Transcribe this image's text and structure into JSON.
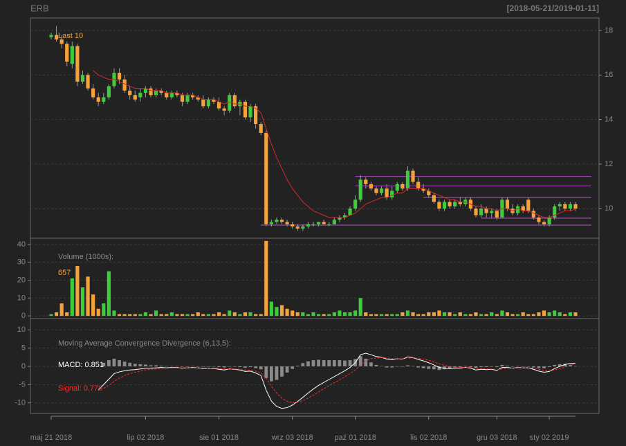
{
  "title": "ERB",
  "date_range": "[2018-05-21/2019-01-11]",
  "chart_data": [
    {
      "type": "candlestick",
      "label": "Last 10",
      "open": [
        17.7,
        17.8,
        17.6,
        17.4,
        16.5,
        17.3,
        15.7,
        16.0,
        15.4,
        15.0,
        14.8,
        15.0,
        15.5,
        16.1,
        15.8,
        15.3,
        15.1,
        15.0,
        15.2,
        15.4,
        15.1,
        15.3,
        15.2,
        15.0,
        15.2,
        15.1,
        14.8,
        15.1,
        15.0,
        14.9,
        14.6,
        14.9,
        14.8,
        14.5,
        14.4,
        15.1,
        14.6,
        14.8,
        14.1,
        14.6,
        13.8,
        13.4,
        9.3,
        9.4,
        9.5,
        9.4,
        9.3,
        9.2,
        9.1,
        9.2,
        9.3,
        9.3,
        9.4,
        9.3,
        9.3,
        9.5,
        9.6,
        9.7,
        10.0,
        10.4,
        11.3,
        11.1,
        10.9,
        10.7,
        10.9,
        10.5,
        10.8,
        11.1,
        10.9,
        11.7,
        11.2,
        10.9,
        10.8,
        10.6,
        10.3,
        10.0,
        10.3,
        10.1,
        10.3,
        10.2,
        10.4,
        10.0,
        9.7,
        10.0,
        9.8,
        9.9,
        9.6,
        10.4,
        10.0,
        9.8,
        10.1,
        10.4,
        9.9,
        9.6,
        9.4,
        9.3,
        9.6,
        10.1,
        10.2,
        10.0,
        10.2
      ],
      "high": [
        17.9,
        18.2,
        17.8,
        17.5,
        17.5,
        17.4,
        16.2,
        16.1,
        15.6,
        15.2,
        15.2,
        15.6,
        16.3,
        16.3,
        16.0,
        15.5,
        15.3,
        15.4,
        15.5,
        15.5,
        15.4,
        15.4,
        15.3,
        15.3,
        15.3,
        15.2,
        15.2,
        15.2,
        15.1,
        15.1,
        15.0,
        15.0,
        15.0,
        14.6,
        15.2,
        15.2,
        14.9,
        14.9,
        14.7,
        14.7,
        13.9,
        13.5,
        9.5,
        9.6,
        9.6,
        9.5,
        9.4,
        9.3,
        9.3,
        9.4,
        9.4,
        9.4,
        9.5,
        9.4,
        9.6,
        9.7,
        9.8,
        10.1,
        10.6,
        11.5,
        11.4,
        11.2,
        11.0,
        11.0,
        11.1,
        11.0,
        11.2,
        11.2,
        11.9,
        11.8,
        11.4,
        11.1,
        10.9,
        10.7,
        10.4,
        10.4,
        10.4,
        10.4,
        10.5,
        10.5,
        10.5,
        10.1,
        10.2,
        10.1,
        10.0,
        10.0,
        10.5,
        10.5,
        10.2,
        10.2,
        10.2,
        10.5,
        10.0,
        9.7,
        9.5,
        9.7,
        10.2,
        10.3,
        10.3,
        10.3,
        10.3
      ],
      "low": [
        17.6,
        17.5,
        17.2,
        16.4,
        16.3,
        15.5,
        15.6,
        15.3,
        14.9,
        14.6,
        14.7,
        14.9,
        15.4,
        15.6,
        15.2,
        14.9,
        14.8,
        14.8,
        15.0,
        15.0,
        15.0,
        15.1,
        14.9,
        14.9,
        15.0,
        14.6,
        14.7,
        14.9,
        14.8,
        14.5,
        14.5,
        14.7,
        14.4,
        14.2,
        14.3,
        14.5,
        14.2,
        14.0,
        13.9,
        13.6,
        13.3,
        9.2,
        9.2,
        9.3,
        9.3,
        9.2,
        9.1,
        9.0,
        9.0,
        9.1,
        9.2,
        9.2,
        9.3,
        9.2,
        9.3,
        9.4,
        9.5,
        9.7,
        9.9,
        10.3,
        10.9,
        10.8,
        10.6,
        10.6,
        10.4,
        10.4,
        10.7,
        10.8,
        10.8,
        11.1,
        10.8,
        10.7,
        10.5,
        10.2,
        9.9,
        9.9,
        10.0,
        10.0,
        10.1,
        10.1,
        9.9,
        9.6,
        9.6,
        9.6,
        9.6,
        9.5,
        9.6,
        9.9,
        9.7,
        9.7,
        9.8,
        9.8,
        9.5,
        9.3,
        9.2,
        9.2,
        9.5,
        9.9,
        9.9,
        9.9,
        9.9
      ],
      "close": [
        17.8,
        17.6,
        17.4,
        16.6,
        17.3,
        15.7,
        16.0,
        15.4,
        15.0,
        14.8,
        15.0,
        15.5,
        16.1,
        15.8,
        15.3,
        15.1,
        14.9,
        15.2,
        15.4,
        15.1,
        15.3,
        15.2,
        15.0,
        15.2,
        15.1,
        14.8,
        15.1,
        15.0,
        14.9,
        14.6,
        14.9,
        14.8,
        14.5,
        14.4,
        15.1,
        14.6,
        14.8,
        14.1,
        14.6,
        13.8,
        13.4,
        9.3,
        9.4,
        9.5,
        9.4,
        9.3,
        9.2,
        9.1,
        9.2,
        9.3,
        9.3,
        9.4,
        9.3,
        9.3,
        9.5,
        9.6,
        9.7,
        10.0,
        10.4,
        11.3,
        11.1,
        10.9,
        10.7,
        10.9,
        10.5,
        10.8,
        11.1,
        10.9,
        11.7,
        11.2,
        10.9,
        10.8,
        10.6,
        10.3,
        10.0,
        10.3,
        10.1,
        10.3,
        10.2,
        10.4,
        10.0,
        9.7,
        10.0,
        9.8,
        9.9,
        9.6,
        10.4,
        10.0,
        9.8,
        10.1,
        9.9,
        9.9,
        9.6,
        9.4,
        9.3,
        9.6,
        10.1,
        10.2,
        10.0,
        10.2,
        10.0
      ],
      "up_color": "#3ccc3c",
      "down_color": "#f5a23a",
      "wick_color": "#9a9a9a",
      "ma": {
        "color": "#d42a2a",
        "values": [
          null,
          null,
          null,
          null,
          null,
          null,
          null,
          null,
          16.2,
          16.0,
          15.9,
          15.8,
          15.8,
          15.7,
          15.6,
          15.5,
          15.4,
          15.4,
          15.4,
          15.3,
          15.3,
          15.3,
          15.2,
          15.2,
          15.2,
          15.1,
          15.1,
          15.1,
          15.0,
          14.9,
          14.9,
          14.9,
          14.8,
          14.7,
          14.8,
          14.7,
          14.7,
          14.6,
          14.6,
          14.5,
          14.3,
          13.6,
          12.9,
          12.3,
          11.8,
          11.3,
          10.9,
          10.6,
          10.3,
          10.1,
          9.9,
          9.8,
          9.7,
          9.6,
          9.6,
          9.6,
          9.6,
          9.7,
          9.8,
          10.0,
          10.2,
          10.3,
          10.4,
          10.5,
          10.5,
          10.6,
          10.7,
          10.7,
          10.9,
          10.9,
          10.9,
          10.9,
          10.8,
          10.7,
          10.6,
          10.5,
          10.4,
          10.4,
          10.3,
          10.3,
          10.2,
          10.1,
          10.1,
          10.0,
          10.0,
          9.9,
          10.0,
          10.0,
          9.9,
          10.0,
          9.9,
          9.9,
          9.8,
          9.7,
          9.6,
          9.6,
          9.7,
          9.8,
          9.9,
          9.9,
          10.0
        ]
      },
      "levels": [
        {
          "value": 11.45,
          "start": 58
        },
        {
          "value": 11.02,
          "start": 58
        },
        {
          "value": 10.5,
          "start": 71
        },
        {
          "value": 9.57,
          "start": 82
        },
        {
          "value": 9.26,
          "start": 40
        }
      ],
      "level_color": "#b650c8",
      "ylim": [
        8.67,
        18.56
      ],
      "yticks": [
        10,
        12,
        14,
        16,
        18
      ],
      "grid": true
    },
    {
      "type": "bar",
      "label": "Volume (1000s):",
      "last_label": "657",
      "values": [
        1,
        2,
        7,
        2,
        21,
        28,
        16,
        22,
        12,
        4,
        7,
        25,
        3,
        1,
        1,
        1,
        1,
        1,
        2,
        1,
        3,
        1,
        1,
        2,
        1,
        1,
        1,
        1,
        2,
        1,
        1,
        1,
        2,
        1,
        3,
        2,
        1,
        2,
        2,
        1,
        1,
        42,
        8,
        5,
        6,
        4,
        3,
        2,
        2,
        1,
        2,
        1,
        1,
        1,
        2,
        3,
        2,
        2,
        3,
        10,
        2,
        1,
        1,
        1,
        1,
        1,
        1,
        2,
        3,
        2,
        1,
        1,
        2,
        2,
        3,
        2,
        2,
        1,
        2,
        1,
        1,
        2,
        1,
        1,
        2,
        1,
        3,
        2,
        1,
        1,
        2,
        1,
        1,
        2,
        3,
        2,
        3,
        2,
        1,
        2,
        2
      ],
      "ylim": [
        -1.5,
        43.5
      ],
      "yticks": [
        0,
        10,
        20,
        30,
        40
      ],
      "grid": true
    },
    {
      "type": "line",
      "title": "Moving Average Convergence Divergence (6,13,5):",
      "categories": [
        "maj 21 2018",
        null,
        null,
        null,
        null,
        null,
        null,
        null,
        null,
        null,
        null,
        null,
        null,
        null,
        null,
        null,
        null,
        null,
        "lip 02 2018",
        null,
        null,
        null,
        null,
        null,
        null,
        null,
        null,
        null,
        null,
        null,
        null,
        null,
        "sie 01 2018",
        null,
        null,
        null,
        null,
        null,
        null,
        null,
        null,
        null,
        null,
        null,
        null,
        null,
        "wrz 03 2018",
        null,
        null,
        null,
        null,
        null,
        null,
        null,
        null,
        null,
        null,
        null,
        "paź 01 2018",
        null,
        null,
        null,
        null,
        null,
        null,
        null,
        null,
        null,
        null,
        null,
        null,
        null,
        "lis 02 2018",
        null,
        null,
        null,
        null,
        null,
        null,
        null,
        null,
        null,
        null,
        null,
        null,
        "gru 03 2018",
        null,
        null,
        null,
        null,
        null,
        null,
        null,
        null,
        null,
        "sty 02 2019",
        null,
        null,
        null,
        null,
        null
      ],
      "series": [
        {
          "name": "MACD: 0.851",
          "color": "#ffffff",
          "values": [
            null,
            null,
            null,
            null,
            null,
            null,
            null,
            null,
            null,
            -6.5,
            -5.0,
            -3.5,
            -2.0,
            -1.5,
            -1.2,
            -1.0,
            -0.9,
            -0.7,
            -0.5,
            -0.5,
            -0.4,
            -0.3,
            -0.4,
            -0.3,
            -0.3,
            -0.5,
            -0.4,
            -0.3,
            -0.4,
            -0.6,
            -0.5,
            -0.6,
            -0.8,
            -1.0,
            -0.7,
            -0.8,
            -1.0,
            -1.4,
            -1.3,
            -1.8,
            -2.5,
            -6.5,
            -9.5,
            -11.0,
            -11.5,
            -11.3,
            -10.6,
            -9.6,
            -8.5,
            -7.3,
            -6.2,
            -5.2,
            -4.4,
            -3.6,
            -2.8,
            -2.0,
            -1.2,
            -0.3,
            1.0,
            3.2,
            3.6,
            3.2,
            2.7,
            2.5,
            2.0,
            1.8,
            2.1,
            2.0,
            2.6,
            2.4,
            1.9,
            1.5,
            1.0,
            0.4,
            -0.3,
            -0.5,
            -0.6,
            -0.5,
            -0.5,
            -0.2,
            -0.5,
            -1.0,
            -0.8,
            -0.9,
            -0.8,
            -1.1,
            -0.3,
            -0.3,
            -0.5,
            -0.3,
            -0.4,
            -0.4,
            -0.8,
            -1.3,
            -1.6,
            -1.4,
            -0.6,
            0.0,
            0.5,
            0.8,
            0.851
          ]
        },
        {
          "name": "Signal: 0.776",
          "color": "#ff2a2a",
          "values": [
            null,
            null,
            null,
            null,
            null,
            null,
            null,
            null,
            null,
            null,
            -6.0,
            -5.2,
            -4.1,
            -3.2,
            -2.5,
            -2.0,
            -1.6,
            -1.3,
            -1.0,
            -0.8,
            -0.7,
            -0.5,
            -0.5,
            -0.4,
            -0.4,
            -0.4,
            -0.4,
            -0.4,
            -0.4,
            -0.5,
            -0.5,
            -0.5,
            -0.6,
            -0.7,
            -0.7,
            -0.7,
            -0.8,
            -1.0,
            -1.1,
            -1.3,
            -1.7,
            -3.3,
            -5.4,
            -7.3,
            -8.7,
            -9.6,
            -9.9,
            -9.8,
            -9.4,
            -8.7,
            -7.9,
            -7.0,
            -6.1,
            -5.3,
            -4.5,
            -3.7,
            -2.8,
            -2.0,
            -1.0,
            0.4,
            1.5,
            2.1,
            2.3,
            2.4,
            2.3,
            2.1,
            2.1,
            2.1,
            2.3,
            2.3,
            2.2,
            2.0,
            1.7,
            1.2,
            0.7,
            0.3,
            0.0,
            -0.2,
            -0.3,
            -0.3,
            -0.3,
            -0.6,
            -0.6,
            -0.7,
            -0.7,
            -0.9,
            -0.7,
            -0.5,
            -0.5,
            -0.4,
            -0.4,
            -0.4,
            -0.5,
            -0.8,
            -1.1,
            -1.2,
            -1.0,
            -0.6,
            -0.2,
            0.4,
            0.776
          ]
        }
      ],
      "histogram_color": "#8a8a8a",
      "ylim": [
        -12.9,
        13.1
      ],
      "yticks": [
        -10,
        -5,
        0,
        5,
        10
      ],
      "grid": true
    }
  ]
}
